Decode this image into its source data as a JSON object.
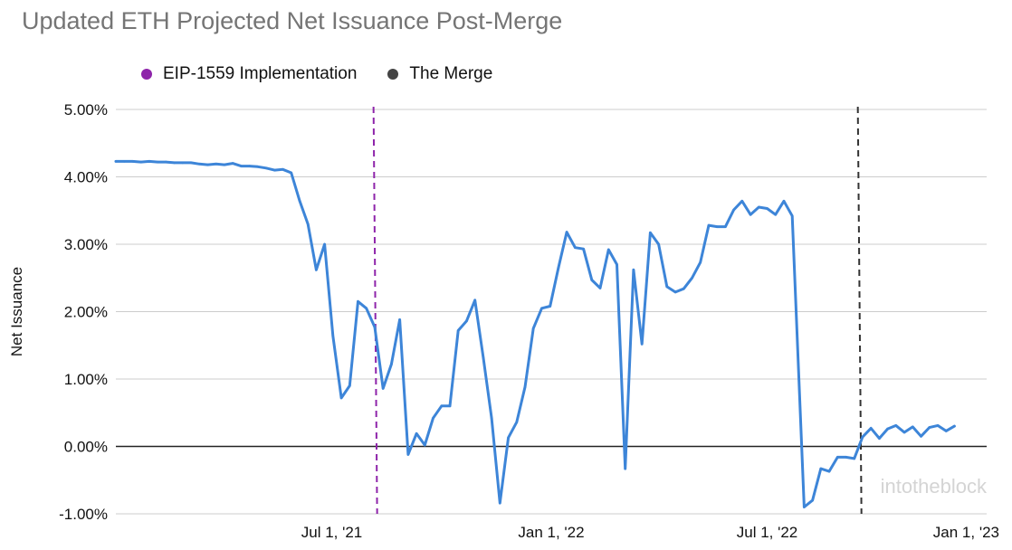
{
  "chart_data": {
    "type": "line",
    "title": "Updated ETH Projected Net Issuance Post-Merge",
    "xlabel": "",
    "ylabel": "Net Issuance",
    "ylim": [
      -1.0,
      5.0
    ],
    "yticks": [
      5.0,
      4.0,
      3.0,
      2.0,
      1.0,
      0.0,
      -1.0
    ],
    "ytick_labels": [
      "5.00%",
      "4.00%",
      "3.00%",
      "2.00%",
      "1.00%",
      "0.00%",
      "-1.00%"
    ],
    "xlim": [
      "2021-01-01",
      "2023-01-01"
    ],
    "xticks": [
      "2021-07-01",
      "2022-01-01",
      "2022-07-01",
      "2023-01-01"
    ],
    "xtick_labels": [
      "Jul 1, '21",
      "Jan 1, '22",
      "Jul 1, '22",
      "Jan 1, '23"
    ],
    "grid": true,
    "legend_position": "top-left",
    "legend": [
      {
        "name": "EIP-1559 Implementation",
        "color": "#8e24aa"
      },
      {
        "name": "The Merge",
        "color": "#444444"
      }
    ],
    "markers": [
      {
        "name": "EIP-1559 Implementation",
        "x": "2021-08-05",
        "color": "#8e24aa"
      },
      {
        "name": "The Merge",
        "x": "2022-09-15",
        "color": "#333333"
      }
    ],
    "watermark": "intotheblock",
    "series": [
      {
        "color": "#3d85d8",
        "points": [
          [
            "2021-01-01",
            4.23
          ],
          [
            "2021-01-08",
            4.23
          ],
          [
            "2021-01-15",
            4.23
          ],
          [
            "2021-01-22",
            4.22
          ],
          [
            "2021-01-29",
            4.23
          ],
          [
            "2021-02-05",
            4.22
          ],
          [
            "2021-02-12",
            4.22
          ],
          [
            "2021-02-19",
            4.21
          ],
          [
            "2021-02-26",
            4.21
          ],
          [
            "2021-03-05",
            4.21
          ],
          [
            "2021-03-12",
            4.19
          ],
          [
            "2021-03-19",
            4.18
          ],
          [
            "2021-03-26",
            4.19
          ],
          [
            "2021-04-02",
            4.18
          ],
          [
            "2021-04-09",
            4.2
          ],
          [
            "2021-04-16",
            4.16
          ],
          [
            "2021-04-23",
            4.16
          ],
          [
            "2021-04-30",
            4.15
          ],
          [
            "2021-05-07",
            4.13
          ],
          [
            "2021-05-14",
            4.1
          ],
          [
            "2021-05-21",
            4.11
          ],
          [
            "2021-05-28",
            4.06
          ],
          [
            "2021-06-04",
            3.65
          ],
          [
            "2021-06-11",
            3.3
          ],
          [
            "2021-06-18",
            2.62
          ],
          [
            "2021-06-25",
            3.0
          ],
          [
            "2021-07-02",
            1.64
          ],
          [
            "2021-07-09",
            0.72
          ],
          [
            "2021-07-16",
            0.9
          ],
          [
            "2021-07-23",
            2.15
          ],
          [
            "2021-07-30",
            2.05
          ],
          [
            "2021-08-06",
            1.77
          ],
          [
            "2021-08-13",
            0.86
          ],
          [
            "2021-08-20",
            1.22
          ],
          [
            "2021-08-27",
            1.88
          ],
          [
            "2021-09-03",
            -0.12
          ],
          [
            "2021-09-10",
            0.19
          ],
          [
            "2021-09-17",
            0.02
          ],
          [
            "2021-09-24",
            0.42
          ],
          [
            "2021-10-01",
            0.6
          ],
          [
            "2021-10-08",
            0.6
          ],
          [
            "2021-10-15",
            1.72
          ],
          [
            "2021-10-22",
            1.86
          ],
          [
            "2021-10-29",
            2.17
          ],
          [
            "2021-11-05",
            1.32
          ],
          [
            "2021-11-12",
            0.42
          ],
          [
            "2021-11-19",
            -0.84
          ],
          [
            "2021-11-26",
            0.13
          ],
          [
            "2021-12-03",
            0.36
          ],
          [
            "2021-12-10",
            0.88
          ],
          [
            "2021-12-17",
            1.75
          ],
          [
            "2021-12-24",
            2.05
          ],
          [
            "2021-12-31",
            2.08
          ],
          [
            "2022-01-07",
            2.65
          ],
          [
            "2022-01-14",
            3.18
          ],
          [
            "2022-01-21",
            2.95
          ],
          [
            "2022-01-28",
            2.93
          ],
          [
            "2022-02-04",
            2.47
          ],
          [
            "2022-02-11",
            2.35
          ],
          [
            "2022-02-18",
            2.92
          ],
          [
            "2022-02-25",
            2.7
          ],
          [
            "2022-03-04",
            -0.33
          ],
          [
            "2022-03-11",
            2.62
          ],
          [
            "2022-03-18",
            1.52
          ],
          [
            "2022-03-25",
            3.17
          ],
          [
            "2022-04-01",
            3.0
          ],
          [
            "2022-04-08",
            2.37
          ],
          [
            "2022-04-15",
            2.29
          ],
          [
            "2022-04-22",
            2.34
          ],
          [
            "2022-04-29",
            2.5
          ],
          [
            "2022-05-06",
            2.73
          ],
          [
            "2022-05-13",
            3.28
          ],
          [
            "2022-05-20",
            3.26
          ],
          [
            "2022-05-27",
            3.26
          ],
          [
            "2022-06-03",
            3.51
          ],
          [
            "2022-06-10",
            3.64
          ],
          [
            "2022-06-17",
            3.44
          ],
          [
            "2022-06-24",
            3.55
          ],
          [
            "2022-07-01",
            3.53
          ],
          [
            "2022-07-08",
            3.44
          ],
          [
            "2022-07-15",
            3.64
          ],
          [
            "2022-07-22",
            3.42
          ],
          [
            "2022-08-01",
            -0.9
          ],
          [
            "2022-08-08",
            -0.8
          ],
          [
            "2022-08-15",
            -0.33
          ],
          [
            "2022-08-22",
            -0.37
          ],
          [
            "2022-08-29",
            -0.16
          ],
          [
            "2022-09-05",
            -0.16
          ],
          [
            "2022-09-12",
            -0.18
          ],
          [
            "2022-09-19",
            0.14
          ],
          [
            "2022-09-26",
            0.27
          ],
          [
            "2022-10-03",
            0.12
          ],
          [
            "2022-10-10",
            0.26
          ],
          [
            "2022-10-17",
            0.31
          ],
          [
            "2022-10-24",
            0.21
          ],
          [
            "2022-10-31",
            0.29
          ],
          [
            "2022-11-07",
            0.15
          ],
          [
            "2022-11-14",
            0.28
          ],
          [
            "2022-11-21",
            0.31
          ],
          [
            "2022-11-28",
            0.23
          ],
          [
            "2022-12-05",
            0.3
          ]
        ]
      }
    ]
  }
}
